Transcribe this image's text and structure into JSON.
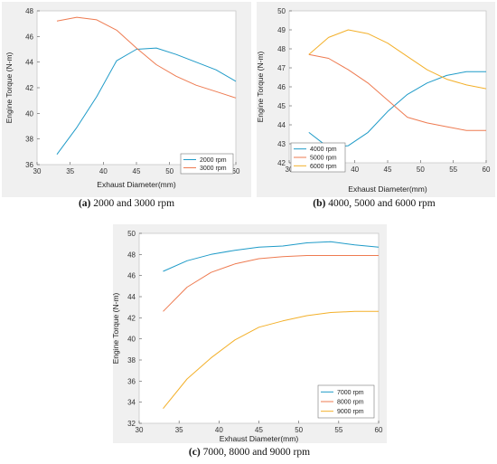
{
  "figures": [
    {
      "caption_bold": "(a)",
      "caption_rest": " 2000 and 3000 rpm"
    },
    {
      "caption_bold": "(b)",
      "caption_rest": " 4000, 5000 and 6000 rpm"
    },
    {
      "caption_bold": "(c)",
      "caption_rest": " 7000, 8000 and 9000 rpm"
    }
  ],
  "chart_data": [
    {
      "type": "line",
      "xlabel": "Exhaust Diameter(mm)",
      "ylabel": "Engine Torque (N-m)",
      "xlim": [
        30,
        60
      ],
      "ylim": [
        36,
        48
      ],
      "xticks": [
        30,
        35,
        40,
        45,
        50,
        55,
        60
      ],
      "yticks": [
        36,
        38,
        40,
        42,
        44,
        46,
        48
      ],
      "x": [
        33,
        36,
        39,
        42,
        45,
        48,
        51,
        54,
        57,
        60
      ],
      "legend": "bottom-right",
      "series": [
        {
          "name": "2000 rpm",
          "color": "#1f9bc8",
          "values": [
            36.8,
            38.9,
            41.3,
            44.1,
            45.0,
            45.1,
            44.6,
            44.0,
            43.4,
            42.5
          ]
        },
        {
          "name": "3000 rpm",
          "color": "#ee7b51",
          "values": [
            47.2,
            47.5,
            47.3,
            46.5,
            45.1,
            43.8,
            42.9,
            42.2,
            41.7,
            41.2
          ]
        }
      ]
    },
    {
      "type": "line",
      "xlabel": "Exhaust Diameter(mm)",
      "ylabel": "Engine Torque (N-m)",
      "xlim": [
        30,
        60
      ],
      "ylim": [
        42,
        50
      ],
      "xticks": [
        30,
        35,
        40,
        45,
        50,
        55,
        60
      ],
      "yticks": [
        42,
        43,
        44,
        45,
        46,
        47,
        48,
        49,
        50
      ],
      "x": [
        33,
        36,
        39,
        42,
        45,
        48,
        51,
        54,
        57,
        60
      ],
      "legend": "bottom-left",
      "series": [
        {
          "name": "4000 rpm",
          "color": "#1f9bc8",
          "values": [
            43.6,
            42.8,
            42.9,
            43.6,
            44.7,
            45.6,
            46.2,
            46.6,
            46.8,
            46.8
          ]
        },
        {
          "name": "5000 rpm",
          "color": "#ee7b51",
          "values": [
            47.7,
            47.5,
            46.9,
            46.2,
            45.3,
            44.4,
            44.1,
            43.9,
            43.7,
            43.7
          ]
        },
        {
          "name": "6000 rpm",
          "color": "#f3b02a",
          "values": [
            47.7,
            48.6,
            49.0,
            48.8,
            48.3,
            47.6,
            46.9,
            46.4,
            46.1,
            45.9
          ]
        }
      ]
    },
    {
      "type": "line",
      "xlabel": "Exhaust Diameter(mm)",
      "ylabel": "Engine Torque (N-m)",
      "xlim": [
        30,
        60
      ],
      "ylim": [
        32,
        50
      ],
      "xticks": [
        30,
        35,
        40,
        45,
        50,
        55,
        60
      ],
      "yticks": [
        32,
        34,
        36,
        38,
        40,
        42,
        44,
        46,
        48,
        50
      ],
      "x": [
        33,
        36,
        39,
        42,
        45,
        48,
        51,
        54,
        57,
        60
      ],
      "legend": "bottom-right",
      "series": [
        {
          "name": "7000 rpm",
          "color": "#1f9bc8",
          "values": [
            46.4,
            47.4,
            48.0,
            48.4,
            48.7,
            48.8,
            49.1,
            49.2,
            48.9,
            48.7
          ]
        },
        {
          "name": "8000 rpm",
          "color": "#ee7b51",
          "values": [
            42.6,
            44.9,
            46.3,
            47.1,
            47.6,
            47.8,
            47.9,
            47.9,
            47.9,
            47.9
          ]
        },
        {
          "name": "9000 rpm",
          "color": "#f3b02a",
          "values": [
            33.4,
            36.2,
            38.2,
            39.9,
            41.1,
            41.7,
            42.2,
            42.5,
            42.6,
            42.6
          ]
        }
      ]
    }
  ]
}
